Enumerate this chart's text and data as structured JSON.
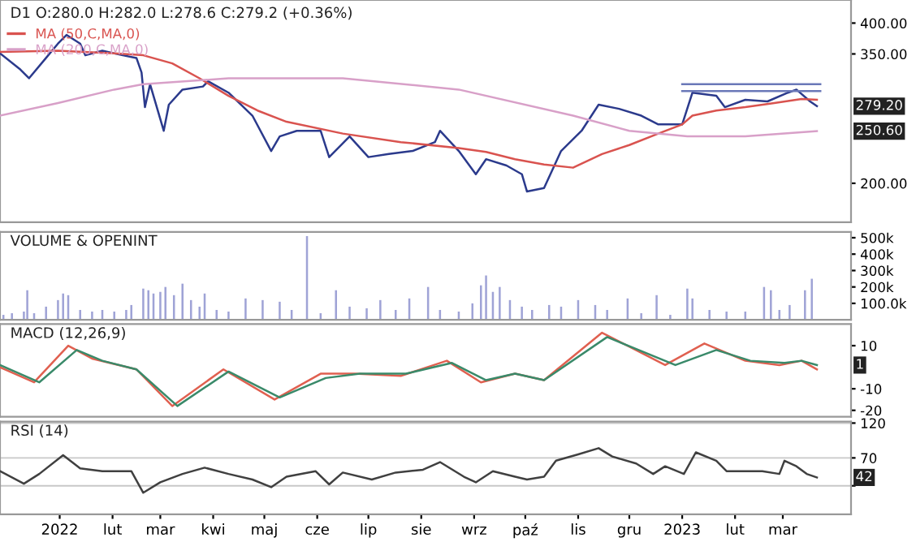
{
  "chart_data": [
    {
      "type": "line",
      "title": "D1 O:280.0 H:282.0 L:278.6 C:279.2 (+0.36%)",
      "log": "y",
      "legend": "top left",
      "tick_labels": "y",
      "xlim": [
        "2021-11-27",
        "2023-04-10"
      ],
      "ylim": [
        169,
        442
      ],
      "yticks": [
        {
          "value": 200,
          "label": "200.00"
        },
        {
          "value": 350,
          "label": "350.00"
        },
        {
          "value": 400,
          "label": "400.00"
        }
      ],
      "annotations": [
        {
          "text": "279.20",
          "x": "2023-03-21",
          "y": 279.2
        },
        {
          "text": "250.60",
          "x": "2023-03-21",
          "y": 250.6
        }
      ],
      "series": [
        {
          "color": "#2b3a8c",
          "x": [
            "2021-11-27",
            "2021-12-09",
            "2021-12-14",
            "2021-12-24",
            "2021-12-31",
            "2022-01-05",
            "2022-01-13",
            "2022-01-16",
            "2022-01-26",
            "2022-02-07",
            "2022-02-15",
            "2022-02-18",
            "2022-02-20",
            "2022-02-23",
            "2022-03-03",
            "2022-03-06",
            "2022-03-14",
            "2022-03-26",
            "2022-03-29",
            "2022-04-10",
            "2022-04-24",
            "2022-05-05",
            "2022-05-10",
            "2022-05-20",
            "2022-06-03",
            "2022-06-08",
            "2022-06-20",
            "2022-07-01",
            "2022-07-13",
            "2022-07-27",
            "2022-08-09",
            "2022-08-12",
            "2022-08-23",
            "2022-09-02",
            "2022-09-08",
            "2022-09-20",
            "2022-09-29",
            "2022-10-02",
            "2022-10-12",
            "2022-10-22",
            "2022-11-03",
            "2022-11-13",
            "2022-11-25",
            "2022-12-08",
            "2022-12-18",
            "2023-01-01",
            "2023-01-07",
            "2023-01-21",
            "2023-01-26",
            "2023-02-07",
            "2023-02-20",
            "2023-03-04",
            "2023-03-09",
            "2023-03-17",
            "2023-03-21"
          ],
          "values": [
            351,
            327,
            315,
            344,
            366,
            380,
            366,
            348,
            355,
            348,
            344,
            323,
            278,
            307,
            251,
            281,
            300,
            304,
            311,
            296,
            268,
            230,
            245,
            251,
            251,
            224,
            245,
            224,
            227,
            230,
            239,
            251,
            230,
            208,
            222,
            216,
            208,
            193,
            196,
            230,
            251,
            281,
            276,
            268,
            258,
            258,
            296,
            292,
            278,
            287,
            285,
            296,
            300,
            285,
            279.2
          ]
        },
        {
          "name": "MA (50,C,MA,0)",
          "color": "#d9534f",
          "x": [
            "2021-11-27",
            "2021-12-31",
            "2022-02-02",
            "2022-02-19",
            "2022-03-08",
            "2022-03-24",
            "2022-04-10",
            "2022-04-27",
            "2022-05-14",
            "2022-06-16",
            "2022-07-20",
            "2022-08-23",
            "2022-09-08",
            "2022-09-25",
            "2022-10-12",
            "2022-10-29",
            "2022-11-15",
            "2022-12-01",
            "2022-12-18",
            "2023-01-01",
            "2023-01-07",
            "2023-01-21",
            "2023-02-07",
            "2023-02-24",
            "2023-03-12",
            "2023-03-21"
          ],
          "values": [
            353,
            355,
            351,
            348,
            336,
            315,
            292,
            274,
            261,
            248,
            239,
            233,
            229,
            222,
            217,
            214,
            227,
            236,
            248,
            258,
            268,
            274,
            278,
            283,
            288,
            287
          ]
        },
        {
          "name": "MA (200,C,MA,0)",
          "color": "#d8a0c8",
          "x": [
            "2021-11-27",
            "2021-12-31",
            "2022-02-02",
            "2022-02-19",
            "2022-04-10",
            "2022-06-16",
            "2022-08-23",
            "2022-10-29",
            "2022-12-01",
            "2023-01-04",
            "2023-02-07",
            "2023-03-21"
          ],
          "values": [
            268,
            283,
            300,
            307,
            315,
            315,
            300,
            268,
            251,
            245,
            245,
            250.6
          ]
        },
        {
          "color": "#6a78b8",
          "x": [
            "2023-01-01",
            "2023-03-23"
          ],
          "values": [
            307,
            307
          ]
        },
        {
          "color": "#6a78b8",
          "x": [
            "2023-01-01",
            "2023-03-23"
          ],
          "values": [
            298,
            298
          ]
        }
      ]
    },
    {
      "type": "bar",
      "title": "VOLUME & OPENINT",
      "tick_labels": "y",
      "xlim": [
        "2021-11-27",
        "2023-04-10"
      ],
      "ylim": [
        0,
        535
      ],
      "yticks": [
        {
          "value": 100,
          "label": "100.0k"
        },
        {
          "value": 200,
          "label": "200k"
        },
        {
          "value": 300,
          "label": "300k"
        },
        {
          "value": 400,
          "label": "400k"
        },
        {
          "value": 500,
          "label": "500k"
        }
      ],
      "series": [
        {
          "color": "#9fa3d6",
          "x": [
            "2021-11-29",
            "2021-12-04",
            "2021-12-11",
            "2021-12-13",
            "2021-12-17",
            "2021-12-24",
            "2021-12-31",
            "2022-01-03",
            "2022-01-06",
            "2022-01-13",
            "2022-01-20",
            "2022-01-26",
            "2022-02-02",
            "2022-02-09",
            "2022-02-12",
            "2022-02-19",
            "2022-02-22",
            "2022-02-25",
            "2022-03-01",
            "2022-03-04",
            "2022-03-09",
            "2022-03-14",
            "2022-03-19",
            "2022-03-24",
            "2022-03-27",
            "2022-04-03",
            "2022-04-10",
            "2022-04-20",
            "2022-04-30",
            "2022-05-10",
            "2022-05-17",
            "2022-05-26",
            "2022-06-03",
            "2022-06-12",
            "2022-06-20",
            "2022-06-30",
            "2022-07-08",
            "2022-07-17",
            "2022-07-25",
            "2022-08-05",
            "2022-08-12",
            "2022-08-23",
            "2022-08-31",
            "2022-09-05",
            "2022-09-08",
            "2022-09-12",
            "2022-09-16",
            "2022-09-22",
            "2022-09-29",
            "2022-10-05",
            "2022-10-15",
            "2022-10-22",
            "2022-11-01",
            "2022-11-11",
            "2022-11-18",
            "2022-11-30",
            "2022-12-08",
            "2022-12-17",
            "2022-12-25",
            "2023-01-04",
            "2023-01-07",
            "2023-01-17",
            "2023-01-27",
            "2023-02-07",
            "2023-02-18",
            "2023-02-22",
            "2023-02-27",
            "2023-03-05",
            "2023-03-14",
            "2023-03-18"
          ],
          "values": [
            30,
            40,
            50,
            180,
            40,
            80,
            120,
            160,
            150,
            60,
            50,
            60,
            50,
            60,
            90,
            190,
            180,
            160,
            170,
            200,
            150,
            220,
            120,
            80,
            160,
            60,
            50,
            130,
            120,
            110,
            60,
            510,
            40,
            180,
            80,
            70,
            120,
            60,
            130,
            200,
            60,
            50,
            100,
            210,
            270,
            170,
            200,
            120,
            80,
            60,
            90,
            80,
            120,
            90,
            60,
            130,
            40,
            150,
            30,
            190,
            130,
            60,
            50,
            50,
            200,
            180,
            60,
            90,
            180,
            250
          ]
        }
      ]
    },
    {
      "type": "line",
      "title": "MACD (12,26,9)",
      "tick_labels": "y",
      "xlim": [
        "2021-11-27",
        "2023-04-10"
      ],
      "ylim": [
        -23,
        20
      ],
      "yticks": [
        -20,
        -10,
        10
      ],
      "annotations": [
        {
          "text": "1",
          "x": "2023-03-21",
          "y": 1
        }
      ],
      "series": [
        {
          "color": "#e06050",
          "x": [
            "2021-11-27",
            "2021-12-17",
            "2022-01-06",
            "2022-01-20",
            "2022-02-15",
            "2022-03-08",
            "2022-04-07",
            "2022-05-07",
            "2022-06-03",
            "2022-06-23",
            "2022-07-20",
            "2022-08-16",
            "2022-09-05",
            "2022-09-25",
            "2022-10-12",
            "2022-11-15",
            "2022-12-22",
            "2023-01-14",
            "2023-02-07",
            "2023-02-27",
            "2023-03-12",
            "2023-03-21"
          ],
          "values": [
            0,
            -7,
            10,
            4,
            -1,
            -18,
            -1,
            -15,
            -3,
            -3,
            -4,
            3,
            -7,
            -3,
            -6,
            16,
            1,
            11,
            3,
            1,
            3,
            -1
          ]
        },
        {
          "color": "#3a8a6a",
          "x": [
            "2021-11-27",
            "2021-12-20",
            "2022-01-11",
            "2022-01-26",
            "2022-02-15",
            "2022-03-11",
            "2022-04-10",
            "2022-05-10",
            "2022-06-06",
            "2022-06-26",
            "2022-07-23",
            "2022-08-19",
            "2022-09-08",
            "2022-09-25",
            "2022-10-12",
            "2022-11-18",
            "2022-12-28",
            "2023-01-21",
            "2023-02-10",
            "2023-03-02",
            "2023-03-12",
            "2023-03-21"
          ],
          "values": [
            1,
            -7,
            8,
            3,
            -1,
            -18,
            -2,
            -14,
            -5,
            -3,
            -3,
            2,
            -6,
            -3,
            -6,
            14,
            1,
            8,
            3,
            2,
            3,
            1
          ]
        }
      ]
    },
    {
      "type": "line",
      "title": "RSI (14)",
      "grid": "y",
      "xlim": [
        "2021-11-27",
        "2023-04-10"
      ],
      "ylim": [
        -11,
        122
      ],
      "yticks": [
        {
          "value": 30,
          "label": null
        },
        70,
        120
      ],
      "xticks": [
        {
          "value": "2022-01-01",
          "label": "2022"
        },
        {
          "value": "2022-02-01",
          "label": "lut"
        },
        {
          "value": "2022-03-01",
          "label": "mar"
        },
        {
          "value": "2022-04-01",
          "label": "kwi"
        },
        {
          "value": "2022-05-01",
          "label": "maj"
        },
        {
          "value": "2022-06-01",
          "label": "cze"
        },
        {
          "value": "2022-07-01",
          "label": "lip"
        },
        {
          "value": "2022-08-01",
          "label": "sie"
        },
        {
          "value": "2022-09-01",
          "label": "wrz"
        },
        {
          "value": "2022-10-01",
          "label": "paź"
        },
        {
          "value": "2022-11-01",
          "label": "lis"
        },
        {
          "value": "2022-12-01",
          "label": "gru"
        },
        {
          "value": "2023-01-01",
          "label": "2023"
        },
        {
          "value": "2023-02-01",
          "label": "lut"
        },
        {
          "value": "2023-03-01",
          "label": "mar"
        }
      ],
      "annotations": [
        {
          "text": "42",
          "x": "2023-03-21",
          "y": 42
        }
      ],
      "series": [
        {
          "color": "#404040",
          "x": [
            "2021-11-27",
            "2021-12-11",
            "2021-12-20",
            "2022-01-03",
            "2022-01-13",
            "2022-01-26",
            "2022-02-12",
            "2022-02-19",
            "2022-03-01",
            "2022-03-14",
            "2022-03-27",
            "2022-04-10",
            "2022-04-24",
            "2022-05-05",
            "2022-05-14",
            "2022-05-31",
            "2022-06-08",
            "2022-06-16",
            "2022-07-03",
            "2022-07-17",
            "2022-08-02",
            "2022-08-12",
            "2022-08-26",
            "2022-09-02",
            "2022-09-12",
            "2022-09-25",
            "2022-10-02",
            "2022-10-12",
            "2022-10-19",
            "2022-11-01",
            "2022-11-13",
            "2022-11-21",
            "2022-12-05",
            "2022-12-15",
            "2022-12-22",
            "2023-01-02",
            "2023-01-09",
            "2023-01-21",
            "2023-01-27",
            "2023-02-17",
            "2023-02-27",
            "2023-03-02",
            "2023-03-09",
            "2023-03-15",
            "2023-03-21"
          ],
          "values": [
            51,
            33,
            47,
            74,
            55,
            51,
            51,
            20,
            35,
            47,
            56,
            47,
            39,
            28,
            43,
            51,
            32,
            49,
            39,
            49,
            53,
            64,
            43,
            35,
            51,
            43,
            39,
            43,
            66,
            75,
            84,
            72,
            62,
            47,
            58,
            47,
            78,
            66,
            51,
            51,
            47,
            66,
            58,
            47,
            42
          ]
        }
      ]
    }
  ]
}
